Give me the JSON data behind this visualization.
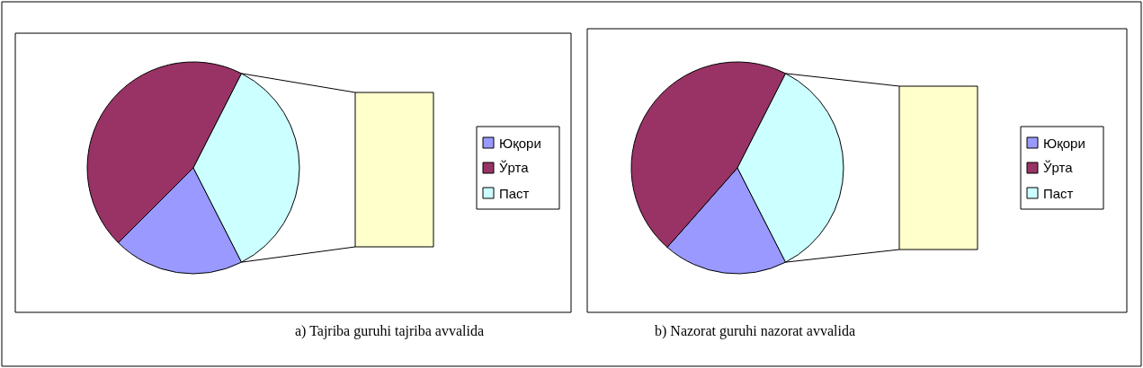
{
  "chart_data": [
    {
      "type": "pie",
      "title": "a) Tajriba guruhi tajriba avvalida",
      "categories": [
        "Юқори",
        "Ўрта",
        "Паст"
      ],
      "values": [
        20,
        45,
        35
      ],
      "colors": [
        "#9999ff",
        "#993366",
        "#ccffff"
      ],
      "legend": "right"
    },
    {
      "type": "pie",
      "title": "b) Nazorat guruhi nazorat avvalida",
      "categories": [
        "Юқори",
        "Ўрта",
        "Паст"
      ],
      "values": [
        19,
        46,
        35
      ],
      "colors": [
        "#9999ff",
        "#993366",
        "#ccffff"
      ],
      "legend": "right"
    }
  ]
}
